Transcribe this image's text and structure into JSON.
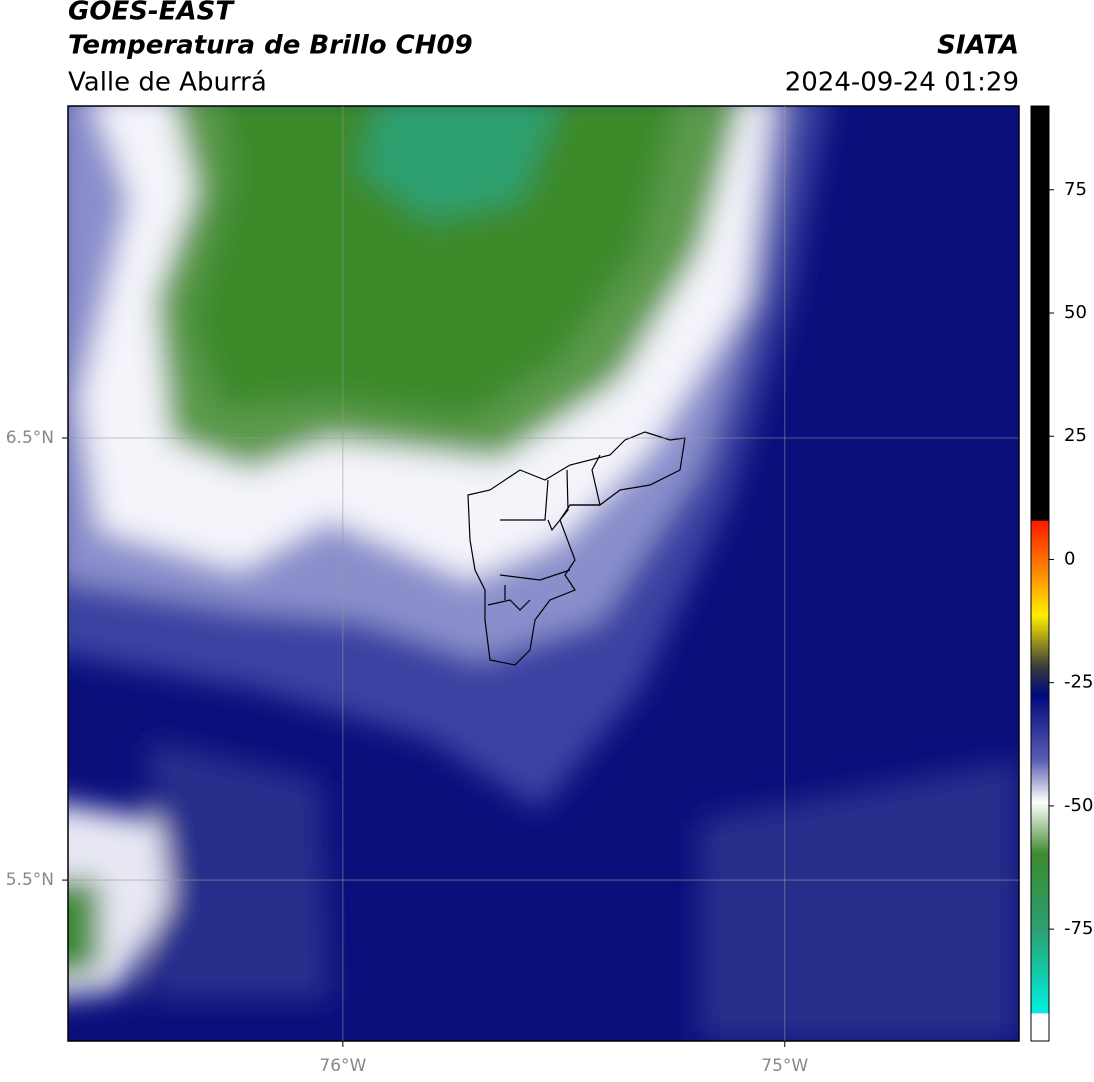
{
  "header": {
    "satellite": "GOES-EAST",
    "product": "Temperatura de Brillo CH09",
    "region": "Valle de Aburrá",
    "org": "SIATA",
    "datetime": "2024-09-24 01:29"
  },
  "map": {
    "lon_lim": [
      -76.622,
      -74.47
    ],
    "lat_lim": [
      5.136,
      7.251
    ],
    "lon_ticks": [
      {
        "value": -76,
        "label": "76°W"
      },
      {
        "value": -75,
        "label": "75°W"
      }
    ],
    "lat_ticks": [
      {
        "value": 6.5,
        "label": "6.5°N"
      },
      {
        "value": 5.5,
        "label": "5.5°N"
      }
    ]
  },
  "colorbar": {
    "lim": [
      -97.7,
      92
    ],
    "ticks": [
      75,
      50,
      25,
      0,
      -25,
      -50,
      -75
    ]
  }
}
